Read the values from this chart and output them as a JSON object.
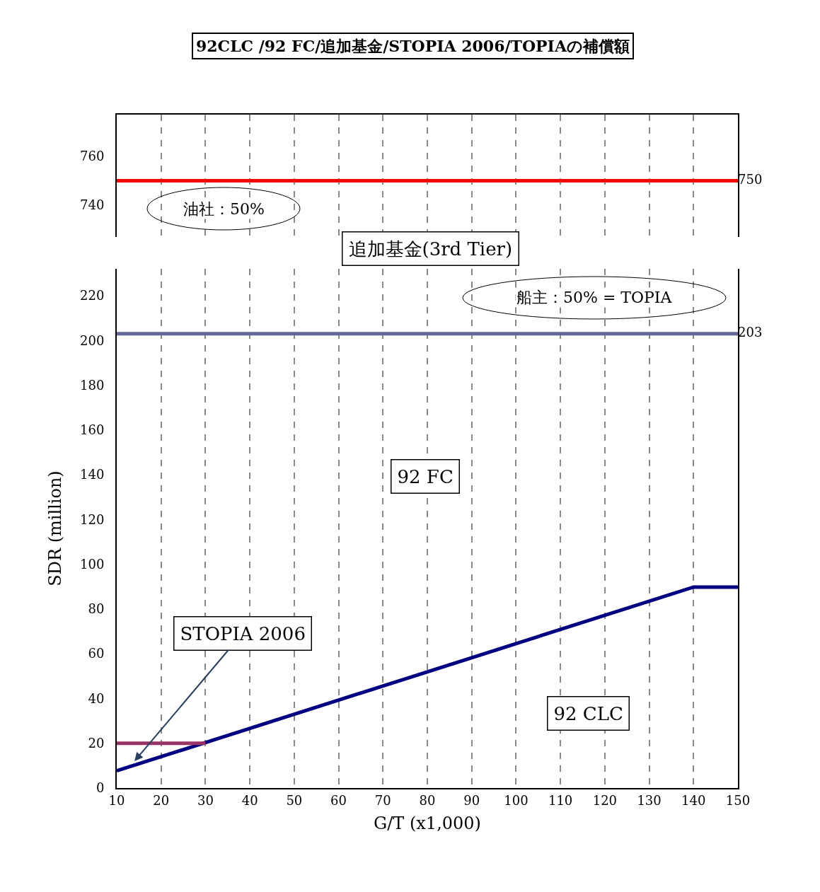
{
  "chart_data": [
    {
      "type": "line",
      "title": "92CLC /92 FC/追加基金/STOPIA 2006/TOPIAの補償額",
      "x": [
        10,
        150
      ],
      "xlim": [
        10,
        150
      ],
      "xticks": [
        10,
        20,
        30,
        40,
        50,
        60,
        70,
        80,
        90,
        100,
        110,
        120,
        130,
        140,
        150
      ],
      "ylim": [
        727,
        777
      ],
      "yticks": [
        740,
        760
      ],
      "tick_labels": "y",
      "grid": "x",
      "marker": "none",
      "series": [
        {
          "color": "#ff0000",
          "values": [
            750,
            750
          ],
          "value_labels": [
            null,
            "750"
          ]
        }
      ],
      "annotations": [
        "油社：50%"
      ]
    },
    {
      "type": "line",
      "xlabel": "G/T (x1,000)",
      "ylabel": "SDR (million)",
      "xlim": [
        10,
        150
      ],
      "xticks": [
        10,
        20,
        30,
        40,
        50,
        60,
        70,
        80,
        90,
        100,
        110,
        120,
        130,
        140,
        150
      ],
      "ylim": [
        0,
        232
      ],
      "yticks": [
        0,
        20,
        40,
        60,
        80,
        100,
        120,
        140,
        160,
        180,
        200,
        220
      ],
      "grid": "x",
      "marker": "none",
      "series": [
        {
          "color": "#666699",
          "x": [
            10,
            150
          ],
          "values": [
            203,
            203
          ],
          "value_labels": [
            null,
            "203"
          ]
        },
        {
          "color": "#000080",
          "x": [
            10,
            140,
            150
          ],
          "values": [
            7.7,
            89.8,
            89.8
          ]
        },
        {
          "color": "#993366",
          "x": [
            10,
            30
          ],
          "values": [
            20,
            20
          ]
        }
      ],
      "annotations": [
        "追加基金(3rd Tier)",
        "船主：50% = TOPIA",
        "92 FC",
        "92 CLC",
        {
          "text": "STOPIA 2006",
          "x": 14,
          "y": 12
        }
      ]
    }
  ]
}
